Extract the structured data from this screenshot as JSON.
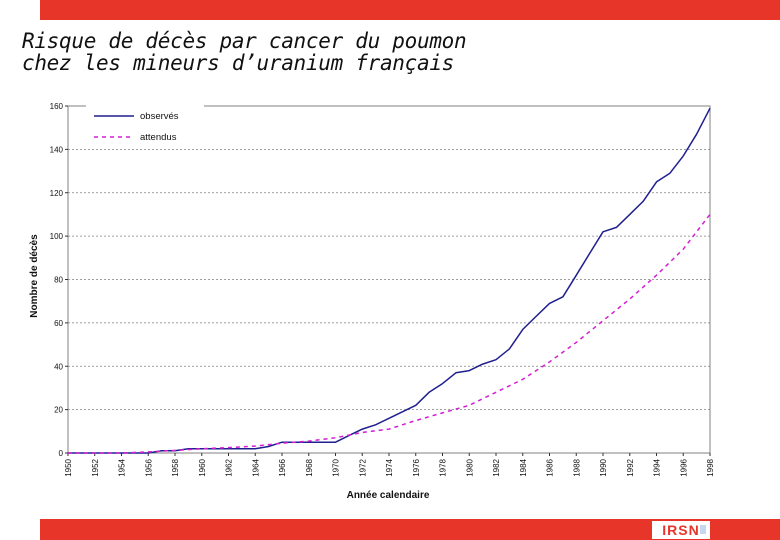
{
  "slide": {
    "title_line1": "Risque de décès par cancer du poumon",
    "title_line2": "chez les mineurs d’uranium français",
    "logo_text": "IRSN"
  },
  "colors": {
    "accent": "#e8352a",
    "observed": "#1f1f8f",
    "expected": "#d21fd2",
    "grid": "#808080"
  },
  "chart_data": {
    "type": "line",
    "title": "",
    "xlabel": "Année calendaire",
    "ylabel": "Nombre de décès",
    "xlim": [
      1950,
      1998
    ],
    "ylim": [
      0,
      160
    ],
    "yticks": [
      0,
      20,
      40,
      60,
      80,
      100,
      120,
      140,
      160
    ],
    "xticks": [
      "1950",
      "1952",
      "1954",
      "1956",
      "1958",
      "1960",
      "1962",
      "1964",
      "1966",
      "1968",
      "1970",
      "1972",
      "1974",
      "1976",
      "1978",
      "1980",
      "1982",
      "1984",
      "1986",
      "1988",
      "1990",
      "1992",
      "1994",
      "1996",
      "1998"
    ],
    "grid": true,
    "legend_position": "top-left",
    "series": [
      {
        "name": "observés",
        "style": "solid",
        "color": "#1f1f8f",
        "x": [
          1950,
          1951,
          1952,
          1953,
          1954,
          1955,
          1956,
          1957,
          1958,
          1959,
          1960,
          1961,
          1962,
          1963,
          1964,
          1965,
          1966,
          1967,
          1968,
          1969,
          1970,
          1971,
          1972,
          1973,
          1974,
          1975,
          1976,
          1977,
          1978,
          1979,
          1980,
          1981,
          1982,
          1983,
          1984,
          1985,
          1986,
          1987,
          1988,
          1989,
          1990,
          1991,
          1992,
          1993,
          1994,
          1995,
          1996,
          1997,
          1998
        ],
        "values": [
          0,
          0,
          0,
          0,
          0,
          0,
          0,
          1,
          1,
          2,
          2,
          2,
          2,
          2,
          2,
          3,
          5,
          5,
          5,
          5,
          5,
          8,
          11,
          13,
          16,
          19,
          22,
          28,
          32,
          37,
          38,
          41,
          43,
          48,
          57,
          63,
          69,
          72,
          82,
          92,
          102,
          104,
          110,
          116,
          125,
          129,
          137,
          147,
          159
        ]
      },
      {
        "name": "attendus",
        "style": "dashed",
        "color": "#d21fd2",
        "x": [
          1950,
          1952,
          1954,
          1956,
          1958,
          1960,
          1962,
          1964,
          1966,
          1968,
          1970,
          1972,
          1974,
          1976,
          1978,
          1980,
          1982,
          1984,
          1986,
          1988,
          1990,
          1992,
          1994,
          1996,
          1998
        ],
        "values": [
          0,
          0,
          0,
          0.5,
          1.2,
          2,
          2.5,
          3.2,
          4.5,
          5.5,
          7,
          9.5,
          11,
          15,
          18.5,
          22,
          28,
          34,
          42,
          51,
          61,
          71,
          82,
          94,
          110
        ]
      }
    ]
  }
}
